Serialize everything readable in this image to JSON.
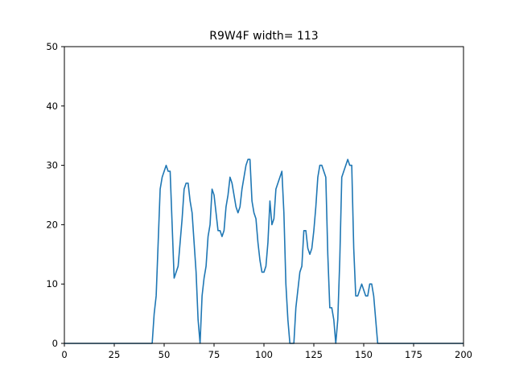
{
  "chart_data": {
    "type": "line",
    "title": "R9W4F width= 113",
    "xlabel": "",
    "ylabel": "",
    "xlim": [
      0,
      200
    ],
    "ylim": [
      0,
      50
    ],
    "xticks": [
      0,
      25,
      50,
      75,
      100,
      125,
      150,
      175,
      200
    ],
    "yticks": [
      0,
      10,
      20,
      30,
      40,
      50
    ],
    "grid": false,
    "color": "#1f77b4",
    "series": [
      {
        "x": [
          0,
          44,
          45,
          46,
          47,
          48,
          49,
          50,
          51,
          52,
          53,
          54,
          55,
          56,
          57,
          58,
          59,
          60,
          61,
          62,
          63,
          64,
          65,
          66,
          67,
          68,
          69,
          70,
          71,
          72,
          73,
          74,
          75,
          76,
          77,
          78,
          79,
          80,
          81,
          82,
          83,
          84,
          85,
          86,
          87,
          88,
          89,
          90,
          91,
          92,
          93,
          94,
          95,
          96,
          97,
          98,
          99,
          100,
          101,
          102,
          103,
          104,
          105,
          106,
          107,
          108,
          109,
          110,
          111,
          112,
          113,
          114,
          115,
          116,
          117,
          118,
          119,
          120,
          121,
          122,
          123,
          124,
          125,
          126,
          127,
          128,
          129,
          130,
          131,
          132,
          133,
          134,
          135,
          136,
          137,
          138,
          139,
          140,
          141,
          142,
          143,
          144,
          145,
          146,
          147,
          148,
          149,
          150,
          151,
          152,
          153,
          154,
          155,
          156,
          157,
          158,
          200
        ],
        "y": [
          0,
          0,
          5,
          8,
          17,
          26,
          28,
          29,
          30,
          29,
          29,
          20,
          11,
          12,
          13,
          17,
          21,
          26,
          27,
          27,
          24,
          22,
          17,
          12,
          4,
          0,
          8,
          11,
          13,
          18,
          20,
          26,
          25,
          22,
          19,
          19,
          18,
          19,
          23,
          25,
          28,
          27,
          25,
          23,
          22,
          23,
          26,
          28,
          30,
          31,
          31,
          24,
          22,
          21,
          17,
          14,
          12,
          12,
          13,
          17,
          24,
          20,
          21,
          26,
          27,
          28,
          29,
          22,
          10,
          4,
          0,
          0,
          0,
          6,
          9,
          12,
          13,
          19,
          19,
          16,
          15,
          16,
          19,
          23,
          28,
          30,
          30,
          29,
          28,
          15,
          6,
          6,
          4,
          0,
          4,
          14,
          28,
          29,
          30,
          31,
          30,
          30,
          16,
          8,
          8,
          9,
          10,
          9,
          8,
          8,
          10,
          10,
          8,
          4,
          0,
          0,
          0
        ]
      }
    ]
  }
}
